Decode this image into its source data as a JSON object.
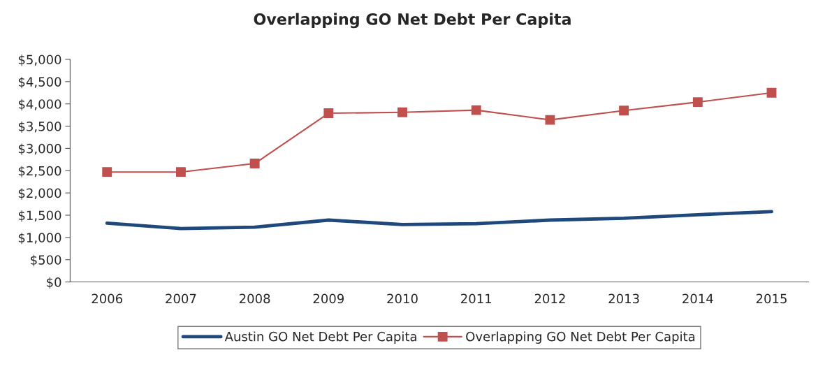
{
  "chart_data": {
    "type": "line",
    "title": "Overlapping GO Net Debt Per Capita",
    "categories": [
      "2006",
      "2007",
      "2008",
      "2009",
      "2010",
      "2011",
      "2012",
      "2013",
      "2014",
      "2015"
    ],
    "series": [
      {
        "name": "Austin GO Net Debt Per Capita",
        "color": "#1f497d",
        "marker": "none",
        "values": [
          1320,
          1200,
          1230,
          1390,
          1290,
          1310,
          1390,
          1430,
          1510,
          1580
        ]
      },
      {
        "name": "Overlapping GO Net Debt Per Capita",
        "color": "#c0504d",
        "marker": "square",
        "values": [
          2470,
          2470,
          2660,
          3790,
          3810,
          3860,
          3640,
          3850,
          4040,
          4250
        ]
      }
    ],
    "ylim": [
      0,
      5000
    ],
    "yticks": [
      {
        "value": 0,
        "label": "$0"
      },
      {
        "value": 500,
        "label": "$500"
      },
      {
        "value": 1000,
        "label": "$1,000"
      },
      {
        "value": 1500,
        "label": "$1,500"
      },
      {
        "value": 2000,
        "label": "$2,000"
      },
      {
        "value": 2500,
        "label": "$2,500"
      },
      {
        "value": 3000,
        "label": "$3,000"
      },
      {
        "value": 3500,
        "label": "$3,500"
      },
      {
        "value": 4000,
        "label": "$4,000"
      },
      {
        "value": 4500,
        "label": "$4,500"
      },
      {
        "value": 5000,
        "label": "$5,000"
      }
    ],
    "grid": false,
    "legend": "bottom"
  }
}
